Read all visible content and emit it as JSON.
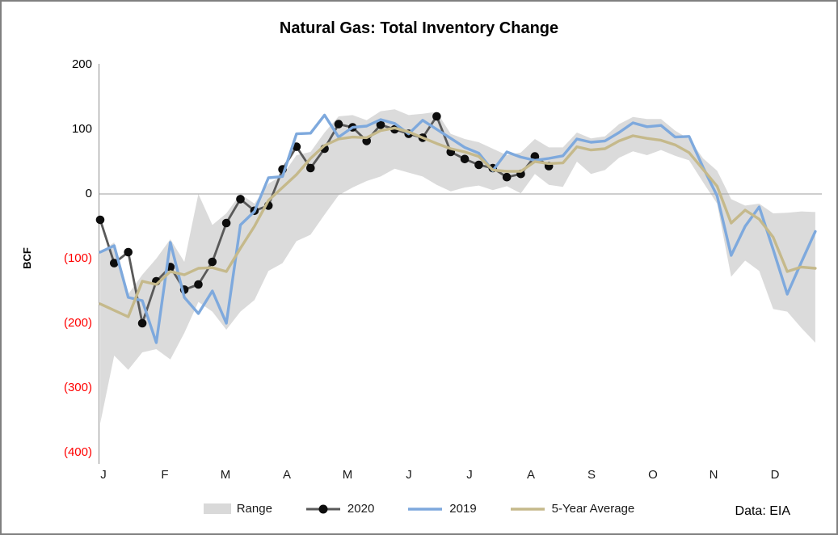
{
  "title": "Natural Gas: Total Inventory Change",
  "source_note": "Data: EIA",
  "y_axis": {
    "label": "BCF",
    "ticks": [
      {
        "text": "200",
        "value": 200,
        "negative": false
      },
      {
        "text": "100",
        "value": 100,
        "negative": false
      },
      {
        "text": "0",
        "value": 0,
        "negative": false
      },
      {
        "text": "(100)",
        "value": -100,
        "negative": true
      },
      {
        "text": "(200)",
        "value": -200,
        "negative": true
      },
      {
        "text": "(300)",
        "value": -300,
        "negative": true
      },
      {
        "text": "(400)",
        "value": -400,
        "negative": true
      }
    ]
  },
  "x_axis": {
    "months": [
      "J",
      "F",
      "M",
      "A",
      "M",
      "J",
      "J",
      "A",
      "S",
      "O",
      "N",
      "D"
    ]
  },
  "legend": [
    {
      "id": "range",
      "label": "Range"
    },
    {
      "id": "y2020",
      "label": "2020"
    },
    {
      "id": "y2019",
      "label": "2019"
    },
    {
      "id": "avg5",
      "label": "5-Year Average"
    }
  ],
  "colors": {
    "band": "#dbdbdb",
    "line_2020": "#595959",
    "marker_2020": "#0d0d0d",
    "line_2019": "#7ea9dd",
    "line_avg5": "#c5b98b",
    "axis": "#8c8c8c",
    "zero_line": "#9c9c9c",
    "negative_tick": "#ff0000"
  },
  "chart_data": {
    "type": "line",
    "title": "Natural Gas: Total Inventory Change",
    "ylabel": "BCF",
    "xlabel": "",
    "x_unit": "week of year",
    "weeks": 52,
    "ylim": [
      -400,
      200
    ],
    "months": [
      "J",
      "F",
      "M",
      "A",
      "M",
      "J",
      "J",
      "A",
      "S",
      "O",
      "N",
      "D"
    ],
    "legend_position": "bottom",
    "grid": "zero-line-only",
    "series": [
      {
        "name": "Range",
        "type": "band",
        "hi": [
          -90,
          -75,
          -155,
          -125,
          -100,
          -70,
          -105,
          0,
          -48,
          -30,
          0,
          -15,
          16,
          29,
          60,
          65,
          95,
          120,
          122,
          114,
          128,
          131,
          122,
          124,
          127,
          93,
          85,
          80,
          70,
          60,
          64,
          85,
          72,
          72,
          95,
          86,
          89,
          108,
          119,
          116,
          116,
          98,
          85,
          55,
          36,
          -8,
          -18,
          -15,
          -30,
          -29,
          -27,
          -28
        ],
        "lo": [
          -355,
          -250,
          -272,
          -245,
          -240,
          -256,
          -215,
          -167,
          -182,
          -210,
          -182,
          -164,
          -119,
          -107,
          -73,
          -63,
          -32,
          -2,
          10,
          20,
          27,
          39,
          33,
          27,
          14,
          4,
          10,
          13,
          6,
          12,
          1,
          31,
          14,
          11,
          50,
          31,
          37,
          56,
          66,
          60,
          68,
          59,
          52,
          18,
          -15,
          -128,
          -103,
          -119,
          -178,
          -182,
          -207,
          -230
        ]
      },
      {
        "name": "2020",
        "type": "line+markers",
        "values": [
          -40,
          -107,
          -90,
          -200,
          -135,
          -113,
          -148,
          -140,
          -105,
          -45,
          -8,
          -26,
          -18,
          38,
          73,
          40,
          70,
          108,
          103,
          82,
          107,
          100,
          93,
          87,
          120,
          65,
          54,
          45,
          40,
          26,
          31,
          58,
          43
        ]
      },
      {
        "name": "2019",
        "type": "line",
        "values": [
          -90,
          -80,
          -160,
          -165,
          -230,
          -75,
          -160,
          -185,
          -150,
          -200,
          -48,
          -27,
          25,
          27,
          93,
          94,
          122,
          88,
          103,
          105,
          115,
          109,
          93,
          114,
          100,
          86,
          72,
          63,
          36,
          65,
          57,
          52,
          55,
          59,
          85,
          80,
          82,
          95,
          110,
          104,
          106,
          88,
          89,
          41,
          -3,
          -95,
          -50,
          -20,
          -86,
          -155,
          -106,
          -58
        ]
      },
      {
        "name": "5-Year Average",
        "type": "line",
        "values": [
          -170,
          -180,
          -190,
          -135,
          -140,
          -120,
          -125,
          -115,
          -114,
          -120,
          -84,
          -50,
          -10,
          10,
          30,
          55,
          75,
          85,
          88,
          87,
          98,
          102,
          96,
          87,
          78,
          70,
          65,
          58,
          37,
          35,
          35,
          50,
          47,
          48,
          73,
          68,
          70,
          82,
          90,
          86,
          83,
          76,
          64,
          38,
          12,
          -45,
          -25,
          -39,
          -67,
          -120,
          -113,
          -115
        ]
      }
    ]
  }
}
